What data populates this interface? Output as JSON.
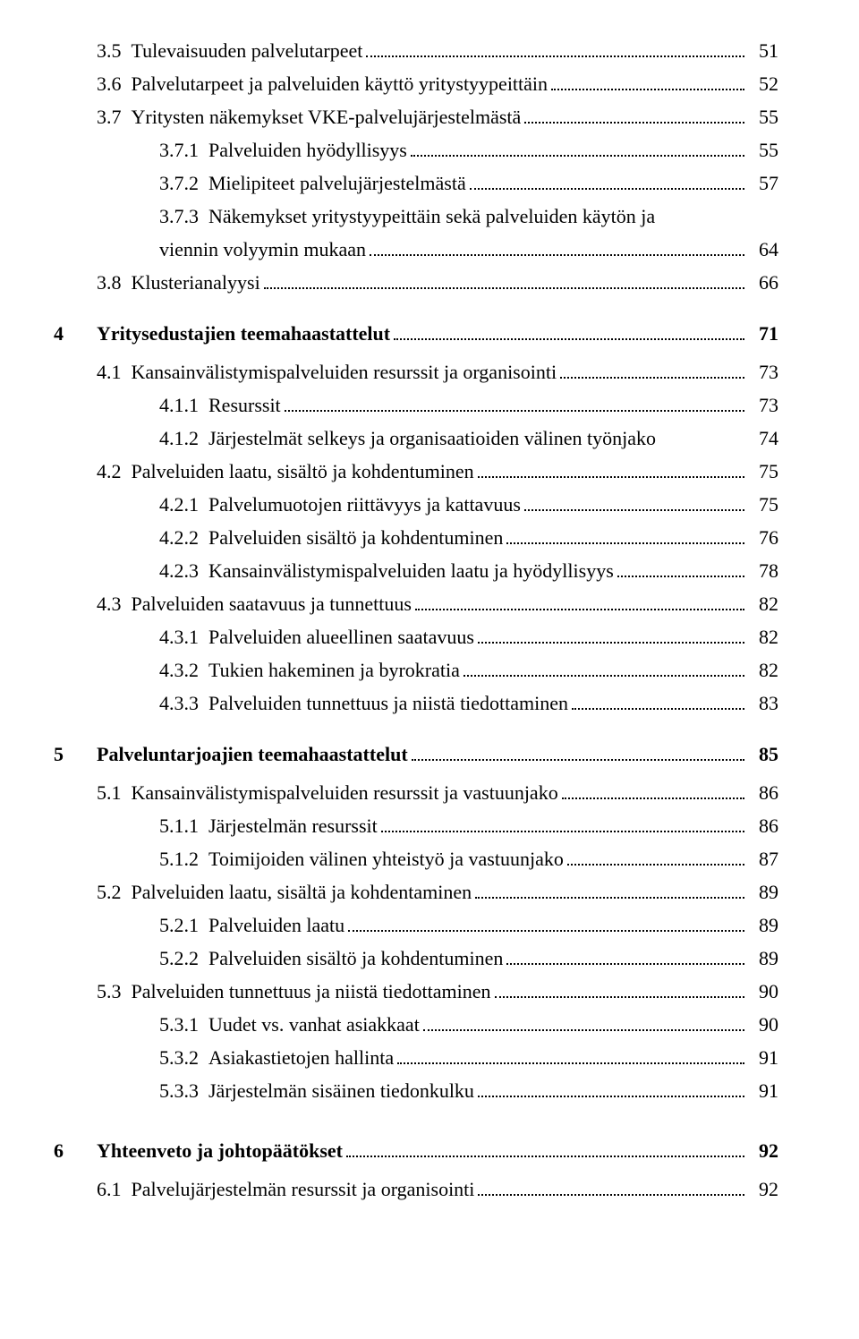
{
  "toc": [
    {
      "type": "row",
      "level": 1,
      "bold": false,
      "num": "3.5",
      "title": "Tulevaisuuden palvelutarpeet",
      "page": "51"
    },
    {
      "type": "row",
      "level": 1,
      "bold": false,
      "num": "3.6",
      "title": "Palvelutarpeet ja palveluiden käyttö yritystyypeittäin",
      "page": "52"
    },
    {
      "type": "row",
      "level": 1,
      "bold": false,
      "num": "3.7",
      "title": "Yritysten näkemykset VKE-palvelujärjestelmästä",
      "page": "55"
    },
    {
      "type": "row",
      "level": 2,
      "bold": false,
      "num": "3.7.1",
      "title": "Palveluiden hyödyllisyys",
      "page": "55"
    },
    {
      "type": "row",
      "level": 2,
      "bold": false,
      "num": "3.7.2",
      "title": "Mielipiteet palvelujärjestelmästä",
      "page": "57"
    },
    {
      "type": "wrap",
      "level": 2,
      "bold": false,
      "num": "3.7.3",
      "titleTop": "Näkemykset yritystyypeittäin sekä palveluiden käytön ja",
      "titleBottom": "viennin volyymin mukaan",
      "page": "64"
    },
    {
      "type": "row",
      "level": 1,
      "bold": false,
      "num": "3.8",
      "title": "Klusterianalyysi",
      "page": "66"
    },
    {
      "type": "gap",
      "size": "md"
    },
    {
      "type": "row",
      "level": 0,
      "bold": true,
      "num": "4",
      "title": "Yritysedustajien teemahaastattelut",
      "page": "71"
    },
    {
      "type": "gap",
      "size": "sm"
    },
    {
      "type": "row",
      "level": 1,
      "bold": false,
      "num": "4.1",
      "title": "Kansainvälistymispalveluiden resurssit ja organisointi",
      "page": "73"
    },
    {
      "type": "row",
      "level": 2,
      "bold": false,
      "num": "4.1.1",
      "title": "Resurssit",
      "page": "73"
    },
    {
      "type": "row",
      "level": 2,
      "bold": false,
      "num": "4.1.2",
      "title": "Järjestelmät selkeys ja organisaatioiden välinen työnjako",
      "page": "74",
      "noleader": true
    },
    {
      "type": "row",
      "level": 1,
      "bold": false,
      "num": "4.2",
      "title": "Palveluiden laatu, sisältö ja kohdentuminen",
      "page": "75"
    },
    {
      "type": "row",
      "level": 2,
      "bold": false,
      "num": "4.2.1",
      "title": "Palvelumuotojen riittävyys ja kattavuus",
      "page": "75"
    },
    {
      "type": "row",
      "level": 2,
      "bold": false,
      "num": "4.2.2",
      "title": "Palveluiden sisältö ja kohdentuminen",
      "page": "76"
    },
    {
      "type": "row",
      "level": 2,
      "bold": false,
      "num": "4.2.3",
      "title": "Kansainvälistymispalveluiden laatu ja hyödyllisyys",
      "page": "78"
    },
    {
      "type": "row",
      "level": 1,
      "bold": false,
      "num": "4.3",
      "title": "Palveluiden saatavuus ja tunnettuus",
      "page": "82"
    },
    {
      "type": "row",
      "level": 2,
      "bold": false,
      "num": "4.3.1",
      "title": "Palveluiden alueellinen saatavuus",
      "page": "82"
    },
    {
      "type": "row",
      "level": 2,
      "bold": false,
      "num": "4.3.2",
      "title": "Tukien hakeminen ja byrokratia",
      "page": "82"
    },
    {
      "type": "row",
      "level": 2,
      "bold": false,
      "num": "4.3.3",
      "title": "Palveluiden tunnettuus ja niistä tiedottaminen",
      "page": "83"
    },
    {
      "type": "gap",
      "size": "md"
    },
    {
      "type": "row",
      "level": 0,
      "bold": true,
      "num": "5",
      "title": "Palveluntarjoajien teemahaastattelut",
      "page": "85"
    },
    {
      "type": "gap",
      "size": "sm"
    },
    {
      "type": "row",
      "level": 1,
      "bold": false,
      "num": "5.1",
      "title": "Kansainvälistymispalveluiden resurssit ja vastuunjako",
      "page": "86"
    },
    {
      "type": "row",
      "level": 2,
      "bold": false,
      "num": "5.1.1",
      "title": "Järjestelmän resurssit",
      "page": "86"
    },
    {
      "type": "row",
      "level": 2,
      "bold": false,
      "num": "5.1.2",
      "title": "Toimijoiden välinen yhteistyö ja vastuunjako",
      "page": "87"
    },
    {
      "type": "row",
      "level": 1,
      "bold": false,
      "num": "5.2",
      "title": "Palveluiden laatu, sisältä ja kohdentaminen",
      "page": "89"
    },
    {
      "type": "row",
      "level": 2,
      "bold": false,
      "num": "5.2.1",
      "title": "Palveluiden laatu",
      "page": "89"
    },
    {
      "type": "row",
      "level": 2,
      "bold": false,
      "num": "5.2.2",
      "title": "Palveluiden sisältö ja kohdentuminen",
      "page": "89"
    },
    {
      "type": "row",
      "level": 1,
      "bold": false,
      "num": "5.3",
      "title": "Palveluiden tunnettuus ja niistä tiedottaminen",
      "page": "90"
    },
    {
      "type": "row",
      "level": 2,
      "bold": false,
      "num": "5.3.1",
      "title": "Uudet vs. vanhat asiakkaat",
      "page": "90"
    },
    {
      "type": "row",
      "level": 2,
      "bold": false,
      "num": "5.3.2",
      "title": "Asiakastietojen hallinta",
      "page": "91"
    },
    {
      "type": "row",
      "level": 2,
      "bold": false,
      "num": "5.3.3",
      "title": "Järjestelmän sisäinen tiedonkulku",
      "page": "91"
    },
    {
      "type": "gap",
      "size": "lg"
    },
    {
      "type": "row",
      "level": 0,
      "bold": true,
      "num": "6",
      "title": "Yhteenveto ja johtopäätökset",
      "page": "92"
    },
    {
      "type": "gap",
      "size": "sm"
    },
    {
      "type": "row",
      "level": 1,
      "bold": false,
      "num": "6.1",
      "title": "Palvelujärjestelmän resurssit ja organisointi",
      "page": "92"
    }
  ]
}
